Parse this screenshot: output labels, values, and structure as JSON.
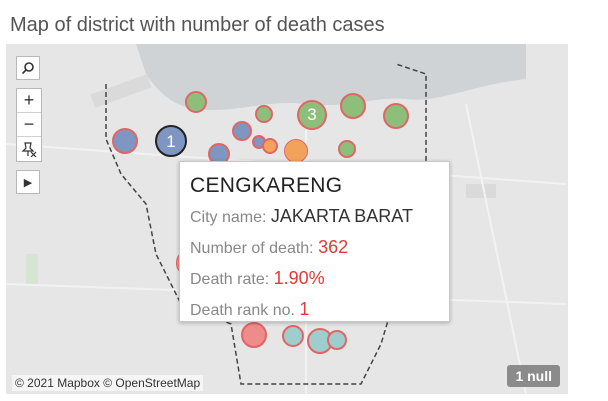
{
  "title": "Map of district with number of death cases",
  "controls": {
    "search_icon": "search-icon",
    "zoom_in": "+",
    "zoom_out": "−",
    "pin_icon": "pin-icon",
    "play_icon": "▶"
  },
  "markers": {
    "label_1": "1",
    "label_3": "3"
  },
  "tooltip": {
    "district": "CENGKARENG",
    "city_label": "City name:",
    "city_value": "JAKARTA BARAT",
    "deaths_label": "Number of death:",
    "deaths_value": "362",
    "rate_label": "Death rate:",
    "rate_value": "1.90%",
    "rank_label": "Death rank no.",
    "rank_value": "1"
  },
  "attribution": "© 2021 Mapbox © OpenStreetMap",
  "null_badge": "1 null",
  "colors": {
    "green": "#8dbf7a",
    "blue": "#7f95c2",
    "orange": "#f3a25c",
    "red": "#ee8b8b",
    "teal": "#9fcccc",
    "border_red": "#e06666"
  }
}
